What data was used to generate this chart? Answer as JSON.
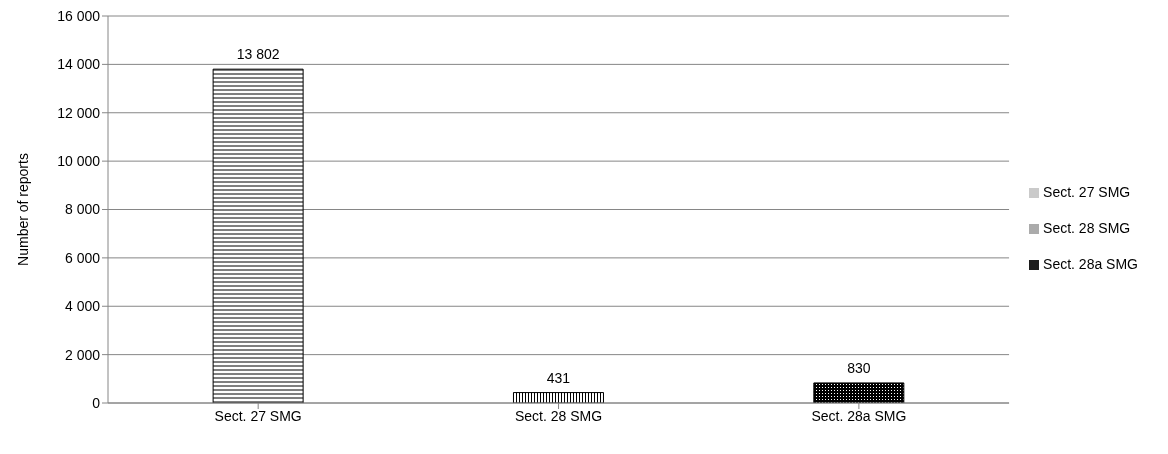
{
  "chart_data": {
    "type": "bar",
    "ylabel": "Number of reports",
    "stacked": true,
    "categories": [
      "Sect. 27  SMG",
      "Sect. 28 SMG",
      "Sect. 28a SMG"
    ],
    "series": [
      {
        "name": "Sect. 27  SMG",
        "color": "#000000",
        "values": [
          13802,
          null,
          null
        ],
        "value_labels": [
          "13 802",
          null,
          null
        ]
      },
      {
        "name": "Sect. 28 SMG",
        "color": "#000000",
        "values": [
          null,
          431,
          null
        ],
        "value_labels": [
          null,
          "431",
          null
        ]
      },
      {
        "name": "Sect. 28a SMG",
        "color": "#000000",
        "values": [
          null,
          null,
          830
        ],
        "value_labels": [
          null,
          null,
          "830"
        ]
      }
    ],
    "ylim": [
      0,
      16000
    ],
    "yticks": [
      {
        "value": 0,
        "label": "0"
      },
      {
        "value": 2000,
        "label": "2 000"
      },
      {
        "value": 4000,
        "label": "4 000"
      },
      {
        "value": 6000,
        "label": "6 000"
      },
      {
        "value": 8000,
        "label": "8 000"
      },
      {
        "value": 10000,
        "label": "10 000"
      },
      {
        "value": 12000,
        "label": "12 000"
      },
      {
        "value": 14000,
        "label": "14 000"
      },
      {
        "value": 16000,
        "label": "16 000"
      }
    ],
    "grid": "y",
    "legend": "right"
  }
}
